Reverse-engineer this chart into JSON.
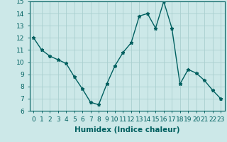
{
  "x": [
    0,
    1,
    2,
    3,
    4,
    5,
    6,
    7,
    8,
    9,
    10,
    11,
    12,
    13,
    14,
    15,
    16,
    17,
    18,
    19,
    20,
    21,
    22,
    23
  ],
  "y": [
    12.0,
    11.0,
    10.5,
    10.2,
    9.9,
    8.8,
    7.8,
    6.7,
    6.5,
    8.2,
    9.7,
    10.8,
    11.6,
    13.8,
    14.0,
    12.8,
    15.0,
    12.8,
    8.2,
    9.4,
    9.1,
    8.5,
    7.7,
    7.0
  ],
  "line_color": "#006060",
  "marker": "*",
  "marker_size": 3.5,
  "bg_color": "#cce8e8",
  "grid_color": "#aacfcf",
  "xlabel": "Humidex (Indice chaleur)",
  "xlabel_fontsize": 7.5,
  "tick_fontsize": 6.5,
  "tick_color": "#006060",
  "ylim": [
    6,
    15
  ],
  "xlim": [
    -0.5,
    23.5
  ],
  "yticks": [
    6,
    7,
    8,
    9,
    10,
    11,
    12,
    13,
    14,
    15
  ],
  "xticks": [
    0,
    1,
    2,
    3,
    4,
    5,
    6,
    7,
    8,
    9,
    10,
    11,
    12,
    13,
    14,
    15,
    16,
    17,
    18,
    19,
    20,
    21,
    22,
    23
  ]
}
